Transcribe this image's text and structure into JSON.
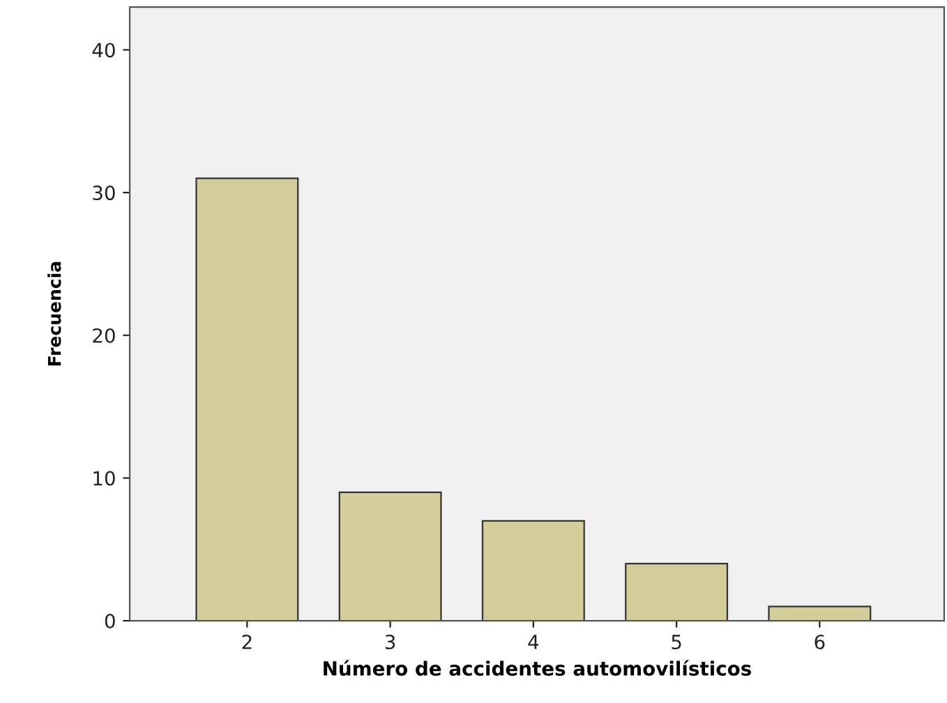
{
  "chart_data": {
    "type": "bar",
    "xlabel": "Número de accidentes automovilísticos",
    "ylabel": "Frecuencia",
    "categories": [
      "2",
      "3",
      "4",
      "5",
      "6"
    ],
    "values": [
      31,
      9,
      7,
      4,
      1
    ],
    "color": "#d3ce99",
    "ylim": [
      0,
      43
    ],
    "yticks": [
      0,
      10,
      20,
      30,
      40
    ],
    "grid": false
  }
}
